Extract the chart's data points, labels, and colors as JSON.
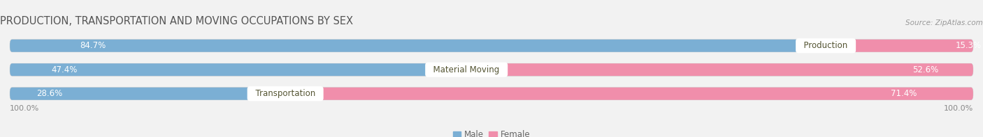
{
  "title": "PRODUCTION, TRANSPORTATION AND MOVING OCCUPATIONS BY SEX",
  "source": "Source: ZipAtlas.com",
  "categories": [
    "Production",
    "Material Moving",
    "Transportation"
  ],
  "male_values": [
    84.7,
    47.4,
    28.6
  ],
  "female_values": [
    15.3,
    52.6,
    71.4
  ],
  "male_color": "#7bafd4",
  "female_color": "#f08eab",
  "male_label": "Male",
  "female_label": "Female",
  "bg_color": "#f2f2f2",
  "bar_bg_color": "#e0e0e0",
  "title_fontsize": 10.5,
  "label_fontsize": 8.5,
  "pct_fontsize": 8.5,
  "tick_fontsize": 8,
  "source_fontsize": 7.5,
  "total": 100.0,
  "xlim_min": 0,
  "xlim_max": 100
}
